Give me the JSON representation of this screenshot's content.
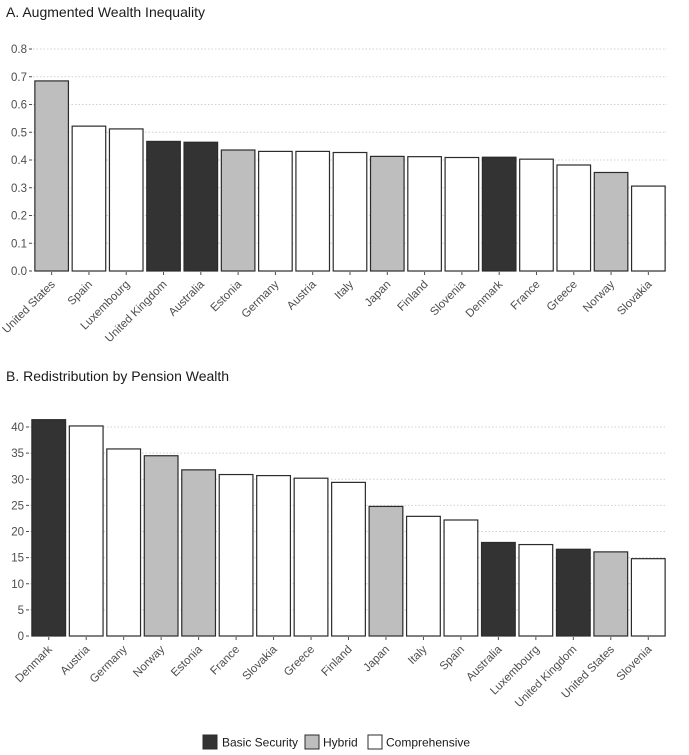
{
  "colors": {
    "Basic Security": "#333333",
    "Hybrid": "#bebebe",
    "Comprehensive": "#ffffff",
    "outline": "#2b2b2b"
  },
  "legend": {
    "items": [
      "Basic Security",
      "Hybrid",
      "Comprehensive"
    ],
    "position": "bottom"
  },
  "chart_data": [
    {
      "type": "bar",
      "title": "A. Augmented Wealth Inequality",
      "xlabel": "",
      "ylabel": "",
      "ylim": [
        0,
        0.8
      ],
      "yticks": [
        0.0,
        0.1,
        0.2,
        0.3,
        0.4,
        0.5,
        0.6,
        0.7,
        0.8
      ],
      "ytick_labels": [
        "0.0",
        "0.1",
        "0.2",
        "0.3",
        "0.4",
        "0.5",
        "0.6",
        "0.7",
        "0.8"
      ],
      "grid": "horizontal-dotted",
      "categories": [
        "United States",
        "Spain",
        "Luxembourg",
        "United Kingdom",
        "Australia",
        "Estonia",
        "Germany",
        "Austria",
        "Italy",
        "Japan",
        "Finland",
        "Slovenia",
        "Denmark",
        "France",
        "Greece",
        "Norway",
        "Slovakia"
      ],
      "values": [
        0.685,
        0.522,
        0.512,
        0.467,
        0.464,
        0.436,
        0.431,
        0.431,
        0.427,
        0.413,
        0.412,
        0.409,
        0.41,
        0.403,
        0.382,
        0.355,
        0.306
      ],
      "groups": [
        "Hybrid",
        "Comprehensive",
        "Comprehensive",
        "Basic Security",
        "Basic Security",
        "Hybrid",
        "Comprehensive",
        "Comprehensive",
        "Comprehensive",
        "Hybrid",
        "Comprehensive",
        "Comprehensive",
        "Basic Security",
        "Comprehensive",
        "Comprehensive",
        "Hybrid",
        "Comprehensive"
      ]
    },
    {
      "type": "bar",
      "title": "B. Redistribution by Pension Wealth",
      "xlabel": "",
      "ylabel": "",
      "ylim": [
        0,
        42
      ],
      "yticks": [
        0,
        5,
        10,
        15,
        20,
        25,
        30,
        35,
        40
      ],
      "ytick_labels": [
        "0",
        "5",
        "10",
        "15",
        "20",
        "25",
        "30",
        "35",
        "40"
      ],
      "grid": "horizontal-dotted",
      "categories": [
        "Denmark",
        "Austria",
        "Germany",
        "Norway",
        "Estonia",
        "France",
        "Slovakia",
        "Greece",
        "Finland",
        "Japan",
        "Italy",
        "Spain",
        "Australia",
        "Luxembourg",
        "United Kingdom",
        "United States",
        "Slovenia"
      ],
      "values": [
        41.4,
        40.2,
        35.8,
        34.5,
        31.8,
        30.9,
        30.7,
        30.2,
        29.4,
        24.8,
        22.9,
        22.2,
        17.9,
        17.5,
        16.6,
        16.1,
        14.8
      ],
      "groups": [
        "Basic Security",
        "Comprehensive",
        "Comprehensive",
        "Hybrid",
        "Hybrid",
        "Comprehensive",
        "Comprehensive",
        "Comprehensive",
        "Comprehensive",
        "Hybrid",
        "Comprehensive",
        "Comprehensive",
        "Basic Security",
        "Comprehensive",
        "Basic Security",
        "Hybrid",
        "Comprehensive"
      ]
    }
  ]
}
